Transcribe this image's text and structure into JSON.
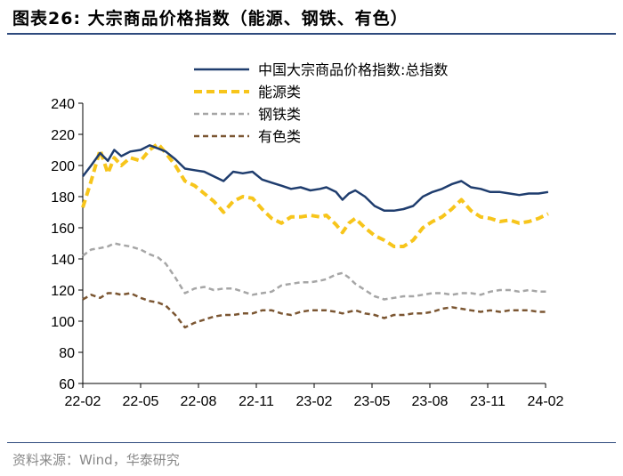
{
  "figure": {
    "title": "图表26:  大宗商品价格指数（能源、钢铁、有色）",
    "source": "资料来源：Wind，华泰研究"
  },
  "chart_data": {
    "type": "line",
    "title": "",
    "xlabel": "",
    "ylabel": "",
    "x_ticks": [
      "22-02",
      "22-05",
      "22-08",
      "22-11",
      "23-02",
      "23-05",
      "23-08",
      "23-11",
      "24-02"
    ],
    "x_range": [
      "2022-02",
      "2024-02"
    ],
    "ylim": [
      60,
      240
    ],
    "y_ticks": [
      60,
      80,
      100,
      120,
      140,
      160,
      180,
      200,
      220,
      240
    ],
    "grid": false,
    "legend_position": "top-right",
    "series": [
      {
        "name": "中国大宗商品价格指数:总指数",
        "color": "#1f3d6e",
        "style": "solid",
        "points": [
          [
            "2022-02-01",
            193
          ],
          [
            "2022-02-14",
            200
          ],
          [
            "2022-02-28",
            208
          ],
          [
            "2022-03-10",
            203
          ],
          [
            "2022-03-20",
            210
          ],
          [
            "2022-04-01",
            206
          ],
          [
            "2022-04-15",
            209
          ],
          [
            "2022-05-01",
            210
          ],
          [
            "2022-05-15",
            213
          ],
          [
            "2022-05-28",
            211
          ],
          [
            "2022-06-10",
            209
          ],
          [
            "2022-06-25",
            204
          ],
          [
            "2022-07-10",
            198
          ],
          [
            "2022-07-25",
            197
          ],
          [
            "2022-08-10",
            196
          ],
          [
            "2022-08-25",
            193
          ],
          [
            "2022-09-10",
            190
          ],
          [
            "2022-09-25",
            196
          ],
          [
            "2022-10-10",
            195
          ],
          [
            "2022-10-25",
            196
          ],
          [
            "2022-11-10",
            191
          ],
          [
            "2022-11-25",
            189
          ],
          [
            "2022-12-10",
            187
          ],
          [
            "2022-12-25",
            185
          ],
          [
            "2023-01-10",
            186
          ],
          [
            "2023-01-25",
            184
          ],
          [
            "2023-02-10",
            185
          ],
          [
            "2023-02-20",
            186
          ],
          [
            "2023-03-05",
            183
          ],
          [
            "2023-03-15",
            178
          ],
          [
            "2023-03-25",
            182
          ],
          [
            "2023-04-05",
            184
          ],
          [
            "2023-04-20",
            180
          ],
          [
            "2023-05-05",
            174
          ],
          [
            "2023-05-20",
            171
          ],
          [
            "2023-06-05",
            171
          ],
          [
            "2023-06-20",
            172
          ],
          [
            "2023-07-05",
            174
          ],
          [
            "2023-07-20",
            180
          ],
          [
            "2023-08-05",
            183
          ],
          [
            "2023-08-20",
            185
          ],
          [
            "2023-09-05",
            188
          ],
          [
            "2023-09-20",
            190
          ],
          [
            "2023-10-05",
            186
          ],
          [
            "2023-10-20",
            185
          ],
          [
            "2023-11-05",
            183
          ],
          [
            "2023-11-20",
            183
          ],
          [
            "2023-12-05",
            182
          ],
          [
            "2023-12-20",
            181
          ],
          [
            "2024-01-05",
            182
          ],
          [
            "2024-01-20",
            182
          ],
          [
            "2024-02-05",
            183
          ]
        ]
      },
      {
        "name": "能源类",
        "color": "#f7c51b",
        "style": "dashed-thick",
        "points": [
          [
            "2022-02-01",
            173
          ],
          [
            "2022-02-14",
            190
          ],
          [
            "2022-02-28",
            210
          ],
          [
            "2022-03-10",
            195
          ],
          [
            "2022-03-20",
            205
          ],
          [
            "2022-04-01",
            200
          ],
          [
            "2022-04-15",
            205
          ],
          [
            "2022-05-01",
            203
          ],
          [
            "2022-05-15",
            210
          ],
          [
            "2022-05-28",
            214
          ],
          [
            "2022-06-10",
            208
          ],
          [
            "2022-06-25",
            200
          ],
          [
            "2022-07-10",
            190
          ],
          [
            "2022-07-25",
            187
          ],
          [
            "2022-08-10",
            182
          ],
          [
            "2022-08-25",
            177
          ],
          [
            "2022-09-10",
            170
          ],
          [
            "2022-09-25",
            177
          ],
          [
            "2022-10-10",
            180
          ],
          [
            "2022-10-25",
            179
          ],
          [
            "2022-11-10",
            172
          ],
          [
            "2022-11-25",
            166
          ],
          [
            "2022-12-10",
            163
          ],
          [
            "2022-12-25",
            167
          ],
          [
            "2023-01-10",
            167
          ],
          [
            "2023-01-25",
            168
          ],
          [
            "2023-02-10",
            167
          ],
          [
            "2023-02-20",
            168
          ],
          [
            "2023-03-05",
            162
          ],
          [
            "2023-03-15",
            157
          ],
          [
            "2023-03-25",
            163
          ],
          [
            "2023-04-05",
            166
          ],
          [
            "2023-04-20",
            160
          ],
          [
            "2023-05-05",
            155
          ],
          [
            "2023-05-20",
            152
          ],
          [
            "2023-06-05",
            148
          ],
          [
            "2023-06-20",
            148
          ],
          [
            "2023-07-05",
            152
          ],
          [
            "2023-07-20",
            160
          ],
          [
            "2023-08-05",
            164
          ],
          [
            "2023-08-20",
            167
          ],
          [
            "2023-09-05",
            172
          ],
          [
            "2023-09-20",
            178
          ],
          [
            "2023-10-05",
            171
          ],
          [
            "2023-10-20",
            167
          ],
          [
            "2023-11-05",
            166
          ],
          [
            "2023-11-20",
            164
          ],
          [
            "2023-12-05",
            165
          ],
          [
            "2023-12-20",
            163
          ],
          [
            "2024-01-05",
            164
          ],
          [
            "2024-01-20",
            166
          ],
          [
            "2024-02-05",
            169
          ]
        ]
      },
      {
        "name": "钢铁类",
        "color": "#a6a6a6",
        "style": "dashed",
        "points": [
          [
            "2022-02-01",
            142
          ],
          [
            "2022-02-14",
            146
          ],
          [
            "2022-02-28",
            147
          ],
          [
            "2022-03-10",
            148
          ],
          [
            "2022-03-20",
            150
          ],
          [
            "2022-04-01",
            149
          ],
          [
            "2022-04-15",
            148
          ],
          [
            "2022-05-01",
            146
          ],
          [
            "2022-05-15",
            143
          ],
          [
            "2022-05-28",
            141
          ],
          [
            "2022-06-10",
            137
          ],
          [
            "2022-06-25",
            128
          ],
          [
            "2022-07-10",
            118
          ],
          [
            "2022-07-25",
            121
          ],
          [
            "2022-08-10",
            122
          ],
          [
            "2022-08-25",
            120
          ],
          [
            "2022-09-10",
            121
          ],
          [
            "2022-09-25",
            121
          ],
          [
            "2022-10-10",
            119
          ],
          [
            "2022-10-25",
            117
          ],
          [
            "2022-11-10",
            118
          ],
          [
            "2022-11-25",
            119
          ],
          [
            "2022-12-10",
            123
          ],
          [
            "2022-12-25",
            124
          ],
          [
            "2023-01-10",
            125
          ],
          [
            "2023-01-25",
            125
          ],
          [
            "2023-02-10",
            126
          ],
          [
            "2023-02-20",
            127
          ],
          [
            "2023-03-05",
            130
          ],
          [
            "2023-03-15",
            131
          ],
          [
            "2023-03-25",
            128
          ],
          [
            "2023-04-05",
            124
          ],
          [
            "2023-04-20",
            120
          ],
          [
            "2023-05-05",
            116
          ],
          [
            "2023-05-20",
            114
          ],
          [
            "2023-06-05",
            115
          ],
          [
            "2023-06-20",
            116
          ],
          [
            "2023-07-05",
            116
          ],
          [
            "2023-07-20",
            117
          ],
          [
            "2023-08-05",
            118
          ],
          [
            "2023-08-20",
            118
          ],
          [
            "2023-09-05",
            117
          ],
          [
            "2023-09-20",
            118
          ],
          [
            "2023-10-05",
            118
          ],
          [
            "2023-10-20",
            117
          ],
          [
            "2023-11-05",
            119
          ],
          [
            "2023-11-20",
            120
          ],
          [
            "2023-12-05",
            120
          ],
          [
            "2023-12-20",
            119
          ],
          [
            "2024-01-05",
            120
          ],
          [
            "2024-01-20",
            119
          ],
          [
            "2024-02-05",
            119
          ]
        ]
      },
      {
        "name": "有色类",
        "color": "#7b5632",
        "style": "dashed",
        "points": [
          [
            "2022-02-01",
            114
          ],
          [
            "2022-02-14",
            117
          ],
          [
            "2022-02-28",
            115
          ],
          [
            "2022-03-10",
            118
          ],
          [
            "2022-03-20",
            118
          ],
          [
            "2022-04-01",
            117
          ],
          [
            "2022-04-15",
            118
          ],
          [
            "2022-05-01",
            115
          ],
          [
            "2022-05-15",
            113
          ],
          [
            "2022-05-28",
            112
          ],
          [
            "2022-06-10",
            110
          ],
          [
            "2022-06-25",
            104
          ],
          [
            "2022-07-10",
            96
          ],
          [
            "2022-07-25",
            99
          ],
          [
            "2022-08-10",
            101
          ],
          [
            "2022-08-25",
            103
          ],
          [
            "2022-09-10",
            104
          ],
          [
            "2022-09-25",
            104
          ],
          [
            "2022-10-10",
            105
          ],
          [
            "2022-10-25",
            105
          ],
          [
            "2022-11-10",
            107
          ],
          [
            "2022-11-25",
            107
          ],
          [
            "2022-12-10",
            105
          ],
          [
            "2022-12-25",
            104
          ],
          [
            "2023-01-10",
            106
          ],
          [
            "2023-01-25",
            107
          ],
          [
            "2023-02-10",
            107
          ],
          [
            "2023-02-20",
            107
          ],
          [
            "2023-03-05",
            106
          ],
          [
            "2023-03-15",
            105
          ],
          [
            "2023-03-25",
            106
          ],
          [
            "2023-04-05",
            107
          ],
          [
            "2023-04-20",
            105
          ],
          [
            "2023-05-05",
            104
          ],
          [
            "2023-05-20",
            102
          ],
          [
            "2023-06-05",
            104
          ],
          [
            "2023-06-20",
            104
          ],
          [
            "2023-07-05",
            105
          ],
          [
            "2023-07-20",
            105
          ],
          [
            "2023-08-05",
            106
          ],
          [
            "2023-08-20",
            108
          ],
          [
            "2023-09-05",
            109
          ],
          [
            "2023-09-20",
            108
          ],
          [
            "2023-10-05",
            107
          ],
          [
            "2023-10-20",
            106
          ],
          [
            "2023-11-05",
            107
          ],
          [
            "2023-11-20",
            106
          ],
          [
            "2023-12-05",
            107
          ],
          [
            "2023-12-20",
            107
          ],
          [
            "2024-01-05",
            107
          ],
          [
            "2024-01-20",
            106
          ],
          [
            "2024-02-05",
            106
          ]
        ]
      }
    ]
  }
}
